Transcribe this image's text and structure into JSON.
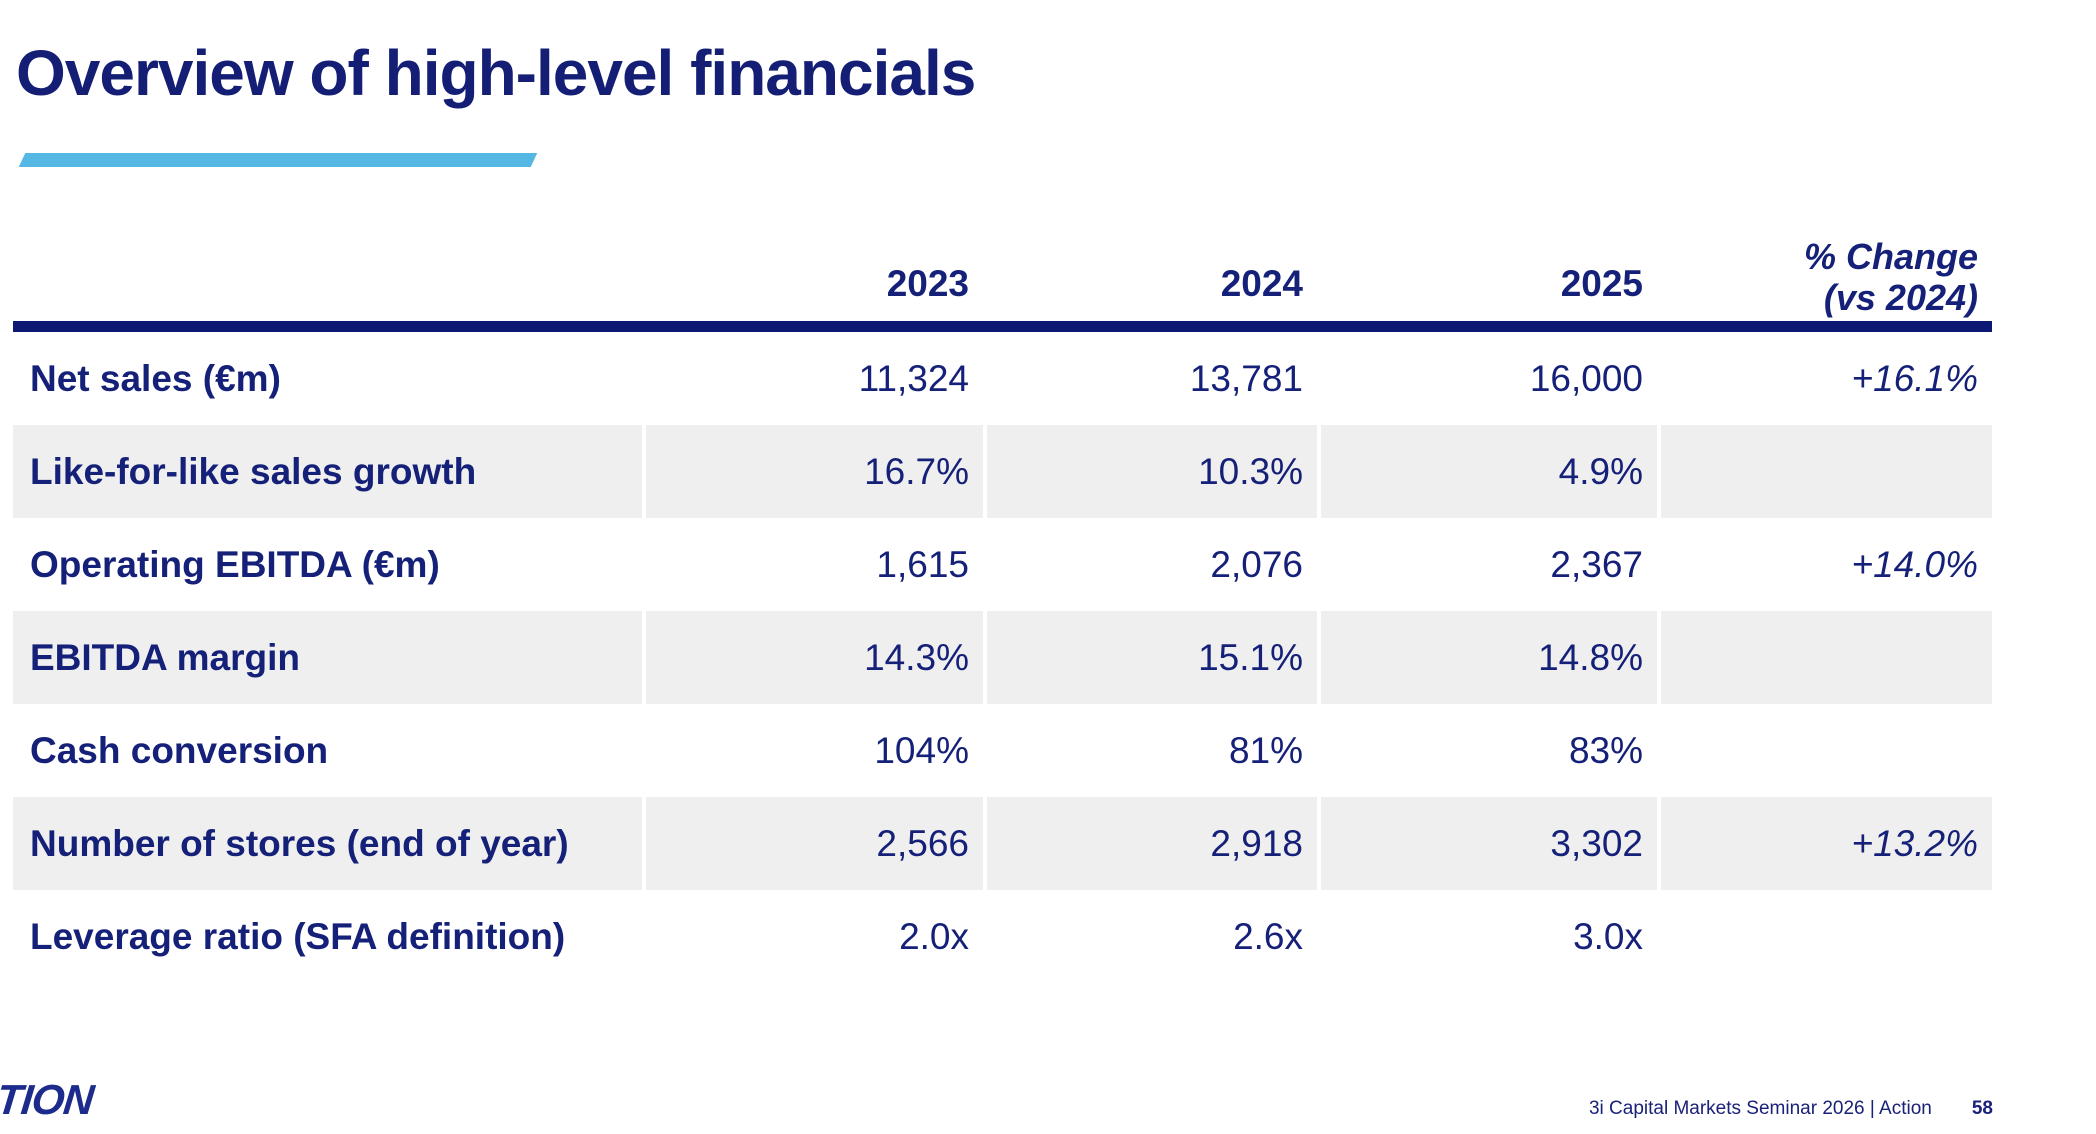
{
  "slide": {
    "title": "Overview of high-level financials",
    "footer": {
      "logo_text": "ACTION",
      "source_text": "3i Capital Markets Seminar 2026 | Action",
      "page_number": "58"
    }
  },
  "table": {
    "header": {
      "years": [
        "2023",
        "2024",
        "2025"
      ],
      "change_label_line1": "% Change",
      "change_label_line2": "(vs 2024)"
    },
    "rows": [
      {
        "label": "Net sales (€m)",
        "values": [
          "11,324",
          "13,781",
          "16,000"
        ],
        "change": "+16.1%"
      },
      {
        "label": "Like-for-like sales growth",
        "values": [
          "16.7%",
          "10.3%",
          "4.9%"
        ],
        "change": ""
      },
      {
        "label": "Operating EBITDA (€m)",
        "values": [
          "1,615",
          "2,076",
          "2,367"
        ],
        "change": "+14.0%"
      },
      {
        "label": "EBITDA margin",
        "values": [
          "14.3%",
          "15.1%",
          "14.8%"
        ],
        "change": ""
      },
      {
        "label": "Cash conversion",
        "values": [
          "104%",
          "81%",
          "83%"
        ],
        "change": ""
      },
      {
        "label": "Number of stores (end of year)",
        "values": [
          "2,566",
          "2,918",
          "3,302"
        ],
        "change": "+13.2%"
      },
      {
        "label": "Leverage ratio (SFA definition)",
        "values": [
          "2.0x",
          "2.6x",
          "3.0x"
        ],
        "change": ""
      }
    ]
  },
  "colors": {
    "navy_text": "#152078",
    "rule_navy": "#0d1875",
    "accent_blue": "#55b8e4",
    "row_shade": "#efefef",
    "logo_blue": "#1c2b8c"
  }
}
